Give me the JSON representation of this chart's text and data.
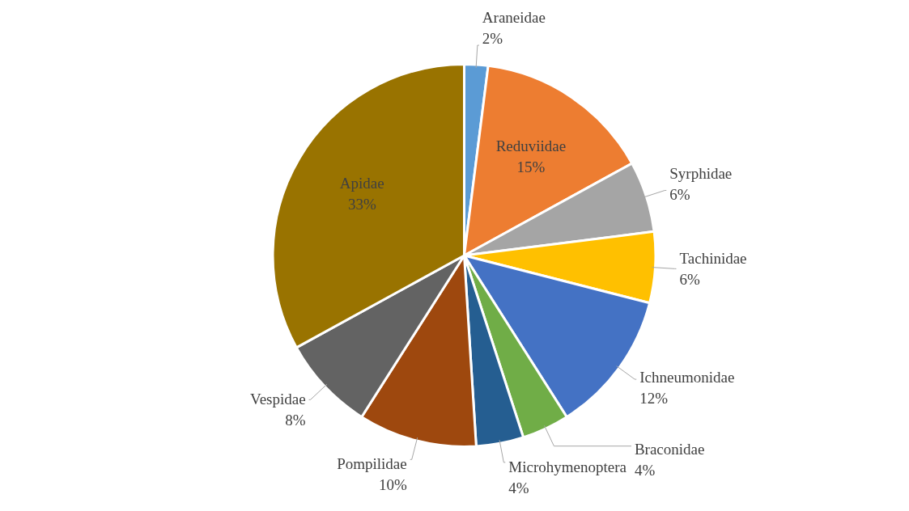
{
  "chart_data": {
    "type": "pie",
    "categories": [
      "Araneidae",
      "Reduviidae",
      "Syrphidae",
      "Tachinidae",
      "Ichneumonidae",
      "Braconidae",
      "Microhymenoptera",
      "Pompilidae",
      "Vespidae",
      "Apidae"
    ],
    "values": [
      2,
      15,
      6,
      6,
      12,
      4,
      4,
      10,
      8,
      33
    ],
    "value_labels": [
      "2%",
      "15%",
      "6%",
      "6%",
      "12%",
      "4%",
      "4%",
      "10%",
      "8%",
      "33%"
    ],
    "colors": [
      "#5b9bd5",
      "#ed7d31",
      "#a5a5a5",
      "#ffc000",
      "#4472c4",
      "#70ad47",
      "#255e91",
      "#9e480e",
      "#636363",
      "#997300"
    ],
    "legend": false
  }
}
